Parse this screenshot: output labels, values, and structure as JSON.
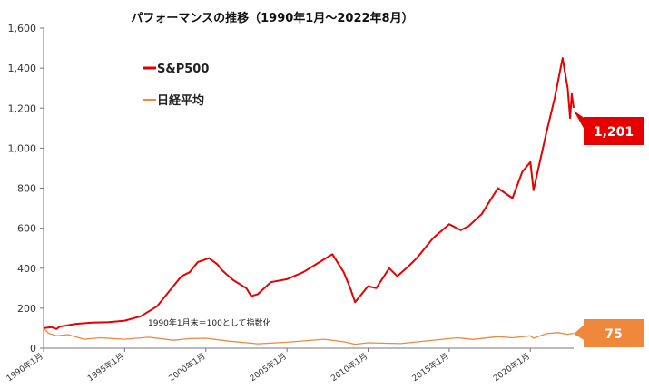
{
  "chart_data": {
    "type": "line",
    "title": "パフォーマンスの推移（1990年1月～2022年8月）",
    "xlabel": "",
    "ylabel": "",
    "ylim": [
      0,
      1600
    ],
    "yticks": [
      "0",
      "200",
      "400",
      "600",
      "800",
      "1,000",
      "1,200",
      "1,400",
      "1,600"
    ],
    "ytick_values": [
      0,
      200,
      400,
      600,
      800,
      1000,
      1200,
      1400,
      1600
    ],
    "xticks": [
      "1990年1月",
      "1995年1月",
      "2000年1月",
      "2005年1月",
      "2010年1月",
      "2015年1月",
      "2020年1月"
    ],
    "xtick_values": [
      1990,
      1995,
      2000,
      2005,
      2010,
      2015,
      2020
    ],
    "xlim": [
      1990.0,
      2022.67
    ],
    "note": "1990年1月末＝100として指数化",
    "grid": false,
    "legend_position": "top-left",
    "series": [
      {
        "name": "S&P500",
        "color": "#e60000",
        "end_label": "1,201",
        "x": [
          1990.0,
          1990.5,
          1990.8,
          1991.0,
          1992.0,
          1993.0,
          1994.0,
          1995.0,
          1996.0,
          1997.0,
          1997.8,
          1998.5,
          1999.0,
          1999.5,
          2000.2,
          2000.7,
          2001.0,
          2001.7,
          2002.5,
          2002.8,
          2003.2,
          2004.0,
          2005.0,
          2006.0,
          2007.0,
          2007.8,
          2008.5,
          2008.9,
          2009.2,
          2010.0,
          2010.5,
          2011.3,
          2011.8,
          2012.5,
          2013.0,
          2014.0,
          2015.0,
          2015.7,
          2016.2,
          2017.0,
          2018.0,
          2018.9,
          2019.5,
          2020.0,
          2020.2,
          2020.5,
          2021.0,
          2021.5,
          2021.99,
          2022.3,
          2022.45,
          2022.55,
          2022.67
        ],
        "values": [
          100,
          105,
          96,
          108,
          122,
          128,
          130,
          138,
          160,
          210,
          290,
          360,
          380,
          430,
          450,
          420,
          390,
          340,
          300,
          260,
          270,
          330,
          345,
          380,
          430,
          470,
          380,
          300,
          230,
          310,
          300,
          400,
          360,
          410,
          450,
          550,
          620,
          590,
          610,
          670,
          800,
          750,
          880,
          930,
          790,
          900,
          1080,
          1250,
          1450,
          1300,
          1150,
          1270,
          1201
        ]
      },
      {
        "name": "日経平均",
        "color": "#f0883c",
        "end_label": "75",
        "x": [
          1990.0,
          1990.3,
          1990.8,
          1991.5,
          1992.5,
          1993.5,
          1995.0,
          1996.5,
          1998.0,
          1999.0,
          2000.0,
          2001.5,
          2003.2,
          2005.0,
          2007.3,
          2008.5,
          2009.2,
          2010.0,
          2012.0,
          2013.5,
          2015.5,
          2016.5,
          2018.0,
          2018.9,
          2020.0,
          2020.2,
          2021.0,
          2021.7,
          2022.3,
          2022.67
        ],
        "values": [
          100,
          75,
          62,
          68,
          45,
          52,
          45,
          55,
          40,
          48,
          50,
          35,
          22,
          30,
          45,
          32,
          20,
          27,
          23,
          36,
          52,
          44,
          58,
          52,
          62,
          50,
          73,
          78,
          70,
          75
        ]
      }
    ]
  }
}
